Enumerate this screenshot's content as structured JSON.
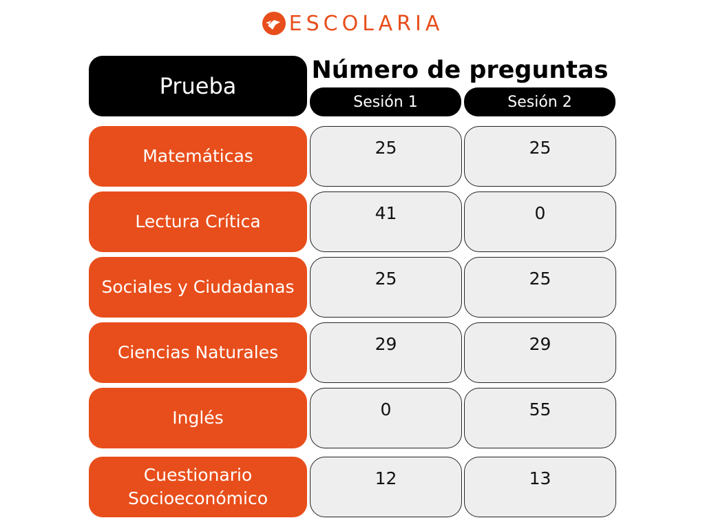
{
  "brand": {
    "name": "ESCOLARIA",
    "color": "#e84e1b"
  },
  "table": {
    "corner_label": "Prueba",
    "group_header": "Número de preguntas",
    "sessions": [
      "Sesión 1",
      "Sesión 2"
    ],
    "rows": [
      {
        "label": "Matemáticas",
        "s1": "25",
        "s2": "25"
      },
      {
        "label": "Lectura Crítica",
        "s1": "41",
        "s2": "0"
      },
      {
        "label": "Sociales y Ciudadanas",
        "s1": "25",
        "s2": "25"
      },
      {
        "label": "Ciencias Naturales",
        "s1": "29",
        "s2": "29"
      },
      {
        "label": "Inglés",
        "s1": "0",
        "s2": "55"
      },
      {
        "label": "Cuestionario Socioeconómico",
        "s1": "12",
        "s2": "13"
      }
    ]
  },
  "colors": {
    "accent": "#e84e1b",
    "header_bg": "#000000",
    "cell_bg": "#eeeeee"
  }
}
